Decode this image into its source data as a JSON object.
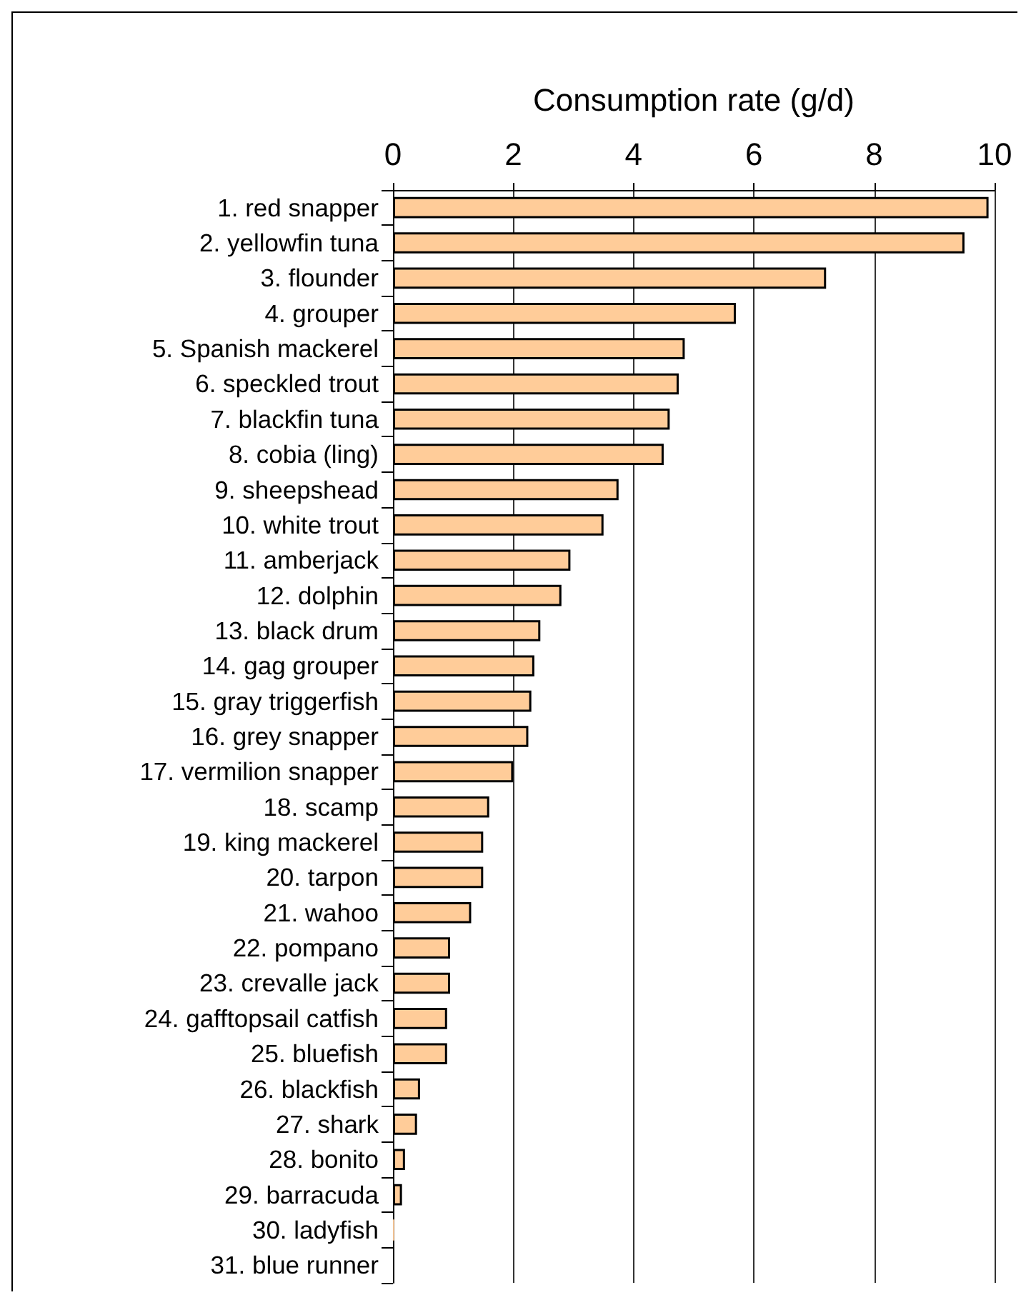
{
  "chart_data": {
    "type": "bar",
    "orientation": "horizontal",
    "xlabel": "Consumption rate (g/d)",
    "categories": [
      "1. red snapper",
      "2. yellowfin tuna",
      "3. flounder",
      "4. grouper",
      "5. Spanish mackerel",
      "6. speckled trout",
      "7. blackfin tuna",
      "8. cobia (ling)",
      "9. sheepshead",
      "10. white trout",
      "11. amberjack",
      "12. dolphin",
      "13. black drum",
      "14. gag grouper",
      "15. gray triggerfish",
      "16. grey snapper",
      "17. vermilion snapper",
      "18. scamp",
      "19. king mackerel",
      "20. tarpon",
      "21. wahoo",
      "22. pompano",
      "23. crevalle jack",
      "24. gafftopsail catfish",
      "25. bluefish",
      "26. blackfish",
      "27. shark",
      "28. bonito",
      "29. barracuda",
      "30. ladyfish",
      "31. blue runner"
    ],
    "values": [
      9.9,
      9.5,
      7.2,
      5.7,
      4.85,
      4.75,
      4.6,
      4.5,
      3.75,
      3.5,
      2.95,
      2.8,
      2.45,
      2.35,
      2.3,
      2.25,
      2.0,
      1.6,
      1.5,
      1.5,
      1.3,
      0.95,
      0.95,
      0.9,
      0.9,
      0.45,
      0.4,
      0.2,
      0.15,
      0.02,
      0
    ],
    "color": "#ffcc99",
    "xlim": [
      0,
      10
    ],
    "xticks": [
      0,
      2,
      4,
      6,
      8,
      10
    ],
    "grid": "x"
  }
}
